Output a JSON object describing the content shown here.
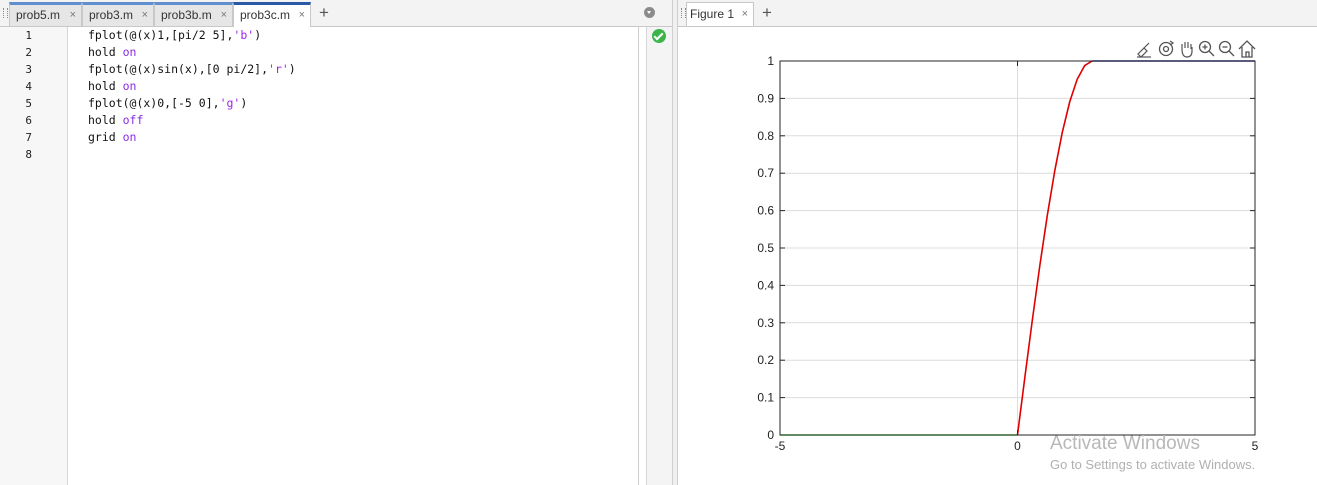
{
  "editor": {
    "tabs": [
      {
        "label": "prob5.m",
        "close": "×"
      },
      {
        "label": "prob3.m",
        "close": "×"
      },
      {
        "label": "prob3b.m",
        "close": "×"
      },
      {
        "label": "prob3c.m",
        "close": "×",
        "active": true
      }
    ],
    "add_tab": "+",
    "line_numbers": [
      "1",
      "2",
      "3",
      "4",
      "5",
      "6",
      "7",
      "8"
    ],
    "lines": [
      {
        "pre": "fplot(@(x)1,[pi/2 5],",
        "str": "'b'",
        "post": ")"
      },
      {
        "pre": "hold ",
        "kw": "on"
      },
      {
        "pre": "fplot(@(x)sin(x),[0 pi/2],",
        "str": "'r'",
        "post": ")"
      },
      {
        "pre": "hold ",
        "kw": "on"
      },
      {
        "pre": "fplot(@(x)0,[-5 0],",
        "str": "'g'",
        "post": ")"
      },
      {
        "pre": "hold ",
        "kw": "off"
      },
      {
        "pre": "grid ",
        "kw": "on"
      },
      {
        "pre": ""
      }
    ]
  },
  "figure": {
    "tab_label": "Figure 1",
    "tab_close": "×",
    "add_tab": "+",
    "toolbar_icons": [
      "brush-icon",
      "rotate-icon",
      "pan-hand-icon",
      "zoom-in-icon",
      "zoom-out-icon",
      "home-icon"
    ]
  },
  "chart_data": {
    "type": "line",
    "title": "",
    "xlabel": "",
    "ylabel": "",
    "xlim": [
      -5,
      5
    ],
    "ylim": [
      0,
      1
    ],
    "xticks": [
      "-5",
      "0",
      "5"
    ],
    "yticks": [
      "0",
      "0.1",
      "0.2",
      "0.3",
      "0.4",
      "0.5",
      "0.6",
      "0.7",
      "0.8",
      "0.9",
      "1"
    ],
    "grid": true,
    "series": [
      {
        "color": "#1f1fa0",
        "x": [
          1.5708,
          5
        ],
        "y": [
          1,
          1
        ]
      },
      {
        "color": "#e00000",
        "x": [
          0,
          0.1571,
          0.3142,
          0.4712,
          0.6283,
          0.7854,
          0.9425,
          1.0996,
          1.2566,
          1.4137,
          1.5708
        ],
        "y": [
          0,
          0.1564,
          0.309,
          0.454,
          0.5878,
          0.7071,
          0.809,
          0.891,
          0.9511,
          0.9877,
          1
        ]
      },
      {
        "color": "#44dd44",
        "x": [
          -5,
          0
        ],
        "y": [
          0,
          0
        ]
      }
    ]
  },
  "watermark": {
    "title": "Activate Windows",
    "subtitle": "Go to Settings to activate Windows."
  }
}
